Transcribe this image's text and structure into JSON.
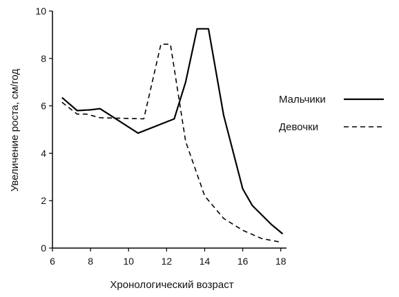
{
  "chart_data": {
    "type": "line",
    "title": "",
    "xlabel": "Хронологический возраст",
    "ylabel": "Увеличение роста, см/год",
    "xlim": [
      6,
      18.3
    ],
    "ylim": [
      0,
      10
    ],
    "xticks": [
      6,
      8,
      10,
      12,
      14,
      16,
      18
    ],
    "yticks": [
      0,
      2,
      4,
      6,
      8,
      10
    ],
    "grid": false,
    "legend_position": "right",
    "series": [
      {
        "name": "Мальчики",
        "style": "solid",
        "color": "#000000",
        "points": [
          [
            6.5,
            6.35
          ],
          [
            7.3,
            5.8
          ],
          [
            8.0,
            5.83
          ],
          [
            8.5,
            5.88
          ],
          [
            10.5,
            4.85
          ],
          [
            12.4,
            5.45
          ],
          [
            13.0,
            7.0
          ],
          [
            13.6,
            9.25
          ],
          [
            14.2,
            9.25
          ],
          [
            15.0,
            5.6
          ],
          [
            16.0,
            2.5
          ],
          [
            16.5,
            1.8
          ],
          [
            17.5,
            1.0
          ],
          [
            18.1,
            0.6
          ]
        ]
      },
      {
        "name": "Девочки",
        "style": "dashed",
        "color": "#000000",
        "points": [
          [
            6.5,
            6.15
          ],
          [
            7.3,
            5.65
          ],
          [
            7.8,
            5.65
          ],
          [
            8.5,
            5.5
          ],
          [
            10.8,
            5.45
          ],
          [
            11.7,
            8.6
          ],
          [
            12.2,
            8.6
          ],
          [
            13.0,
            4.5
          ],
          [
            14.0,
            2.2
          ],
          [
            15.0,
            1.25
          ],
          [
            16.0,
            0.75
          ],
          [
            17.0,
            0.4
          ],
          [
            18.0,
            0.25
          ]
        ]
      }
    ]
  }
}
